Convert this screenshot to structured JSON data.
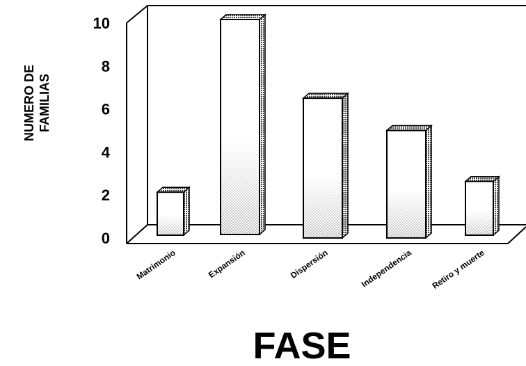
{
  "chart_data": {
    "type": "bar",
    "categories": [
      "Matrimonio",
      "Expansión",
      "Dispersión",
      "Independencia",
      "Retiro y muerte"
    ],
    "values": [
      2,
      10,
      6.5,
      5,
      2.5
    ],
    "xlabel": "FASE",
    "ylabel": [
      "NUMERO DE",
      "FAMILIAS"
    ],
    "ylim": [
      0,
      10
    ],
    "yticks": [
      0,
      2,
      4,
      6,
      8,
      10
    ],
    "grid": false,
    "style": "3d",
    "colors": {
      "bar_face": "#ffffff",
      "bar_shade": "#c8c8c8",
      "bar_side": "#6e6e6e",
      "outline": "#000000"
    }
  }
}
